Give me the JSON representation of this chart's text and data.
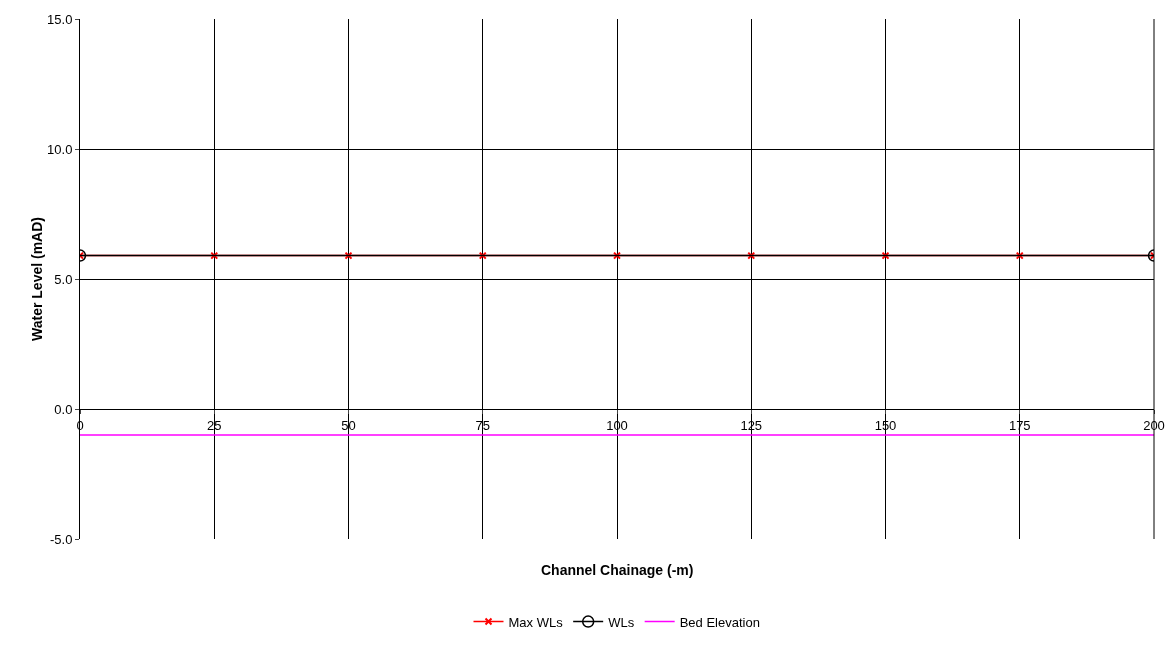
{
  "chart_data": {
    "type": "line",
    "xlabel": "Channel Chainage (-m)",
    "ylabel": "Water Level (mAD)",
    "x": [
      0,
      25,
      50,
      75,
      100,
      125,
      150,
      175,
      200
    ],
    "series": [
      {
        "name": "Max WLs",
        "color": "#ff0000",
        "marker": "cross",
        "values": [
          5.9,
          5.9,
          5.9,
          5.9,
          5.9,
          5.9,
          5.9,
          5.9,
          5.9
        ]
      },
      {
        "name": "WLs",
        "color": "#000000",
        "marker": "circle",
        "x": [
          0,
          200
        ],
        "values": [
          5.9,
          5.9
        ]
      },
      {
        "name": "Bed Elevation",
        "color": "#ff00ff",
        "marker": "none",
        "values": [
          -1.0,
          -1.0,
          -1.0,
          -1.0,
          -1.0,
          -1.0,
          -1.0,
          -1.0,
          -1.0
        ]
      }
    ],
    "xlim": [
      0,
      200
    ],
    "xticks": [
      0,
      25,
      50,
      75,
      100,
      125,
      150,
      175,
      200
    ],
    "ylim": [
      -5,
      15
    ],
    "yticks": [
      {
        "value": -5,
        "label": "-5.0"
      },
      {
        "value": 0,
        "label": "0.0"
      },
      {
        "value": 5,
        "label": "5.0"
      },
      {
        "value": 10,
        "label": "10.0"
      },
      {
        "value": 15,
        "label": "15.0"
      }
    ],
    "grid": true,
    "legend": "bottom"
  }
}
